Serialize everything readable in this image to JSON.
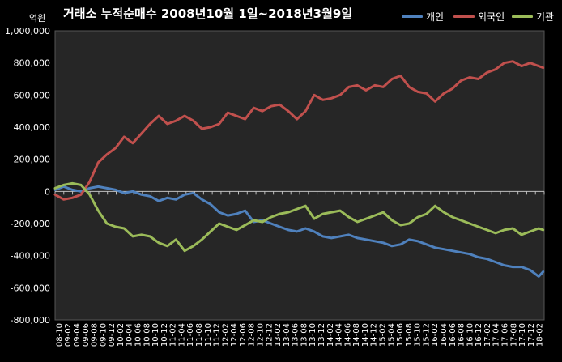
{
  "chart_data": {
    "type": "line",
    "title": "거래소 누적순매수 2008년10월 1일~2018년3월9일",
    "y_unit_label": "억원",
    "ylim": [
      -800000,
      1000000
    ],
    "y_ticks": [
      "1,000,000",
      "800,000",
      "600,000",
      "400,000",
      "200,000",
      "0",
      "-200,000",
      "-400,000",
      "-600,000",
      "-800,000"
    ],
    "y_tick_values": [
      1000000,
      800000,
      600000,
      400000,
      200000,
      0,
      -200000,
      -400000,
      -600000,
      -800000
    ],
    "x_tick_labels": [
      "08-10",
      "09-02",
      "09-04",
      "09-06",
      "09-08",
      "09-10",
      "09-12",
      "10-02",
      "10-04",
      "10-06",
      "10-08",
      "10-10",
      "10-12",
      "11-02",
      "11-04",
      "11-06",
      "11-08",
      "11-10",
      "11-12",
      "12-02",
      "12-04",
      "12-06",
      "12-08",
      "12-10",
      "12-12",
      "13-02",
      "13-04",
      "13-06",
      "13-08",
      "13-10",
      "13-12",
      "14-02",
      "14-04",
      "14-06",
      "14-08",
      "14-10",
      "14-12",
      "15-02",
      "15-04",
      "15-06",
      "15-08",
      "15-10",
      "15-12",
      "16-02",
      "16-04",
      "16-06",
      "16-08",
      "16-10",
      "16-12",
      "17-02",
      "17-04",
      "17-06",
      "17-08",
      "17-10",
      "17-12",
      "18-02"
    ],
    "grid": false,
    "legend_position": "top-right",
    "series": [
      {
        "name": "개인",
        "color": "#4f81bd",
        "points": [
          [
            "2008-10",
            10000
          ],
          [
            "2008-12",
            30000
          ],
          [
            "2009-02",
            10000
          ],
          [
            "2009-04",
            0
          ],
          [
            "2009-06",
            20000
          ],
          [
            "2009-08",
            30000
          ],
          [
            "2009-10",
            20000
          ],
          [
            "2009-12",
            10000
          ],
          [
            "2010-02",
            -10000
          ],
          [
            "2010-04",
            0
          ],
          [
            "2010-06",
            -20000
          ],
          [
            "2010-08",
            -30000
          ],
          [
            "2010-10",
            -60000
          ],
          [
            "2010-12",
            -40000
          ],
          [
            "2011-02",
            -50000
          ],
          [
            "2011-04",
            -20000
          ],
          [
            "2011-06",
            -10000
          ],
          [
            "2011-08",
            -50000
          ],
          [
            "2011-10",
            -80000
          ],
          [
            "2011-12",
            -130000
          ],
          [
            "2012-02",
            -150000
          ],
          [
            "2012-04",
            -140000
          ],
          [
            "2012-06",
            -120000
          ],
          [
            "2012-08",
            -190000
          ],
          [
            "2012-10",
            -180000
          ],
          [
            "2012-12",
            -200000
          ],
          [
            "2013-02",
            -220000
          ],
          [
            "2013-04",
            -240000
          ],
          [
            "2013-06",
            -250000
          ],
          [
            "2013-08",
            -230000
          ],
          [
            "2013-10",
            -250000
          ],
          [
            "2013-12",
            -280000
          ],
          [
            "2014-02",
            -290000
          ],
          [
            "2014-04",
            -280000
          ],
          [
            "2014-06",
            -270000
          ],
          [
            "2014-08",
            -290000
          ],
          [
            "2014-10",
            -300000
          ],
          [
            "2014-12",
            -310000
          ],
          [
            "2015-02",
            -320000
          ],
          [
            "2015-04",
            -340000
          ],
          [
            "2015-06",
            -330000
          ],
          [
            "2015-08",
            -300000
          ],
          [
            "2015-10",
            -310000
          ],
          [
            "2015-12",
            -330000
          ],
          [
            "2016-02",
            -350000
          ],
          [
            "2016-04",
            -360000
          ],
          [
            "2016-06",
            -370000
          ],
          [
            "2016-08",
            -380000
          ],
          [
            "2016-10",
            -390000
          ],
          [
            "2016-12",
            -410000
          ],
          [
            "2017-02",
            -420000
          ],
          [
            "2017-04",
            -440000
          ],
          [
            "2017-06",
            -460000
          ],
          [
            "2017-08",
            -470000
          ],
          [
            "2017-10",
            -470000
          ],
          [
            "2017-12",
            -490000
          ],
          [
            "2018-02",
            -530000
          ],
          [
            "2018-03",
            -500000
          ]
        ]
      },
      {
        "name": "외국인",
        "color": "#c0504d",
        "points": [
          [
            "2008-10",
            -20000
          ],
          [
            "2008-12",
            -50000
          ],
          [
            "2009-02",
            -40000
          ],
          [
            "2009-04",
            -20000
          ],
          [
            "2009-06",
            60000
          ],
          [
            "2009-08",
            180000
          ],
          [
            "2009-10",
            230000
          ],
          [
            "2009-12",
            270000
          ],
          [
            "2010-02",
            340000
          ],
          [
            "2010-04",
            300000
          ],
          [
            "2010-06",
            360000
          ],
          [
            "2010-08",
            420000
          ],
          [
            "2010-10",
            470000
          ],
          [
            "2010-12",
            420000
          ],
          [
            "2011-02",
            440000
          ],
          [
            "2011-04",
            470000
          ],
          [
            "2011-06",
            440000
          ],
          [
            "2011-08",
            390000
          ],
          [
            "2011-10",
            400000
          ],
          [
            "2011-12",
            420000
          ],
          [
            "2012-02",
            490000
          ],
          [
            "2012-04",
            470000
          ],
          [
            "2012-06",
            450000
          ],
          [
            "2012-08",
            520000
          ],
          [
            "2012-10",
            500000
          ],
          [
            "2012-12",
            530000
          ],
          [
            "2013-02",
            540000
          ],
          [
            "2013-04",
            500000
          ],
          [
            "2013-06",
            450000
          ],
          [
            "2013-08",
            500000
          ],
          [
            "2013-10",
            600000
          ],
          [
            "2013-12",
            570000
          ],
          [
            "2014-02",
            580000
          ],
          [
            "2014-04",
            600000
          ],
          [
            "2014-06",
            650000
          ],
          [
            "2014-08",
            660000
          ],
          [
            "2014-10",
            630000
          ],
          [
            "2014-12",
            660000
          ],
          [
            "2015-02",
            650000
          ],
          [
            "2015-04",
            700000
          ],
          [
            "2015-06",
            720000
          ],
          [
            "2015-08",
            650000
          ],
          [
            "2015-10",
            620000
          ],
          [
            "2015-12",
            610000
          ],
          [
            "2016-02",
            560000
          ],
          [
            "2016-04",
            610000
          ],
          [
            "2016-06",
            640000
          ],
          [
            "2016-08",
            690000
          ],
          [
            "2016-10",
            710000
          ],
          [
            "2016-12",
            700000
          ],
          [
            "2017-02",
            740000
          ],
          [
            "2017-04",
            760000
          ],
          [
            "2017-06",
            800000
          ],
          [
            "2017-08",
            810000
          ],
          [
            "2017-10",
            780000
          ],
          [
            "2017-12",
            800000
          ],
          [
            "2018-02",
            780000
          ],
          [
            "2018-03",
            770000
          ]
        ]
      },
      {
        "name": "기관",
        "color": "#9bbb59",
        "points": [
          [
            "2008-10",
            20000
          ],
          [
            "2008-12",
            40000
          ],
          [
            "2009-02",
            50000
          ],
          [
            "2009-04",
            40000
          ],
          [
            "2009-06",
            -20000
          ],
          [
            "2009-08",
            -120000
          ],
          [
            "2009-10",
            -200000
          ],
          [
            "2009-12",
            -220000
          ],
          [
            "2010-02",
            -230000
          ],
          [
            "2010-04",
            -280000
          ],
          [
            "2010-06",
            -270000
          ],
          [
            "2010-08",
            -280000
          ],
          [
            "2010-10",
            -320000
          ],
          [
            "2010-12",
            -340000
          ],
          [
            "2011-02",
            -300000
          ],
          [
            "2011-04",
            -370000
          ],
          [
            "2011-06",
            -340000
          ],
          [
            "2011-08",
            -300000
          ],
          [
            "2011-10",
            -250000
          ],
          [
            "2011-12",
            -200000
          ],
          [
            "2012-02",
            -220000
          ],
          [
            "2012-04",
            -240000
          ],
          [
            "2012-06",
            -210000
          ],
          [
            "2012-08",
            -180000
          ],
          [
            "2012-10",
            -190000
          ],
          [
            "2012-12",
            -160000
          ],
          [
            "2013-02",
            -140000
          ],
          [
            "2013-04",
            -130000
          ],
          [
            "2013-06",
            -110000
          ],
          [
            "2013-08",
            -90000
          ],
          [
            "2013-10",
            -170000
          ],
          [
            "2013-12",
            -140000
          ],
          [
            "2014-02",
            -130000
          ],
          [
            "2014-04",
            -120000
          ],
          [
            "2014-06",
            -160000
          ],
          [
            "2014-08",
            -190000
          ],
          [
            "2014-10",
            -170000
          ],
          [
            "2014-12",
            -150000
          ],
          [
            "2015-02",
            -130000
          ],
          [
            "2015-04",
            -180000
          ],
          [
            "2015-06",
            -210000
          ],
          [
            "2015-08",
            -200000
          ],
          [
            "2015-10",
            -160000
          ],
          [
            "2015-12",
            -140000
          ],
          [
            "2016-02",
            -90000
          ],
          [
            "2016-04",
            -130000
          ],
          [
            "2016-06",
            -160000
          ],
          [
            "2016-08",
            -180000
          ],
          [
            "2016-10",
            -200000
          ],
          [
            "2016-12",
            -220000
          ],
          [
            "2017-02",
            -240000
          ],
          [
            "2017-04",
            -260000
          ],
          [
            "2017-06",
            -240000
          ],
          [
            "2017-08",
            -230000
          ],
          [
            "2017-10",
            -270000
          ],
          [
            "2017-12",
            -250000
          ],
          [
            "2018-02",
            -230000
          ],
          [
            "2018-03",
            -240000
          ]
        ]
      }
    ]
  }
}
